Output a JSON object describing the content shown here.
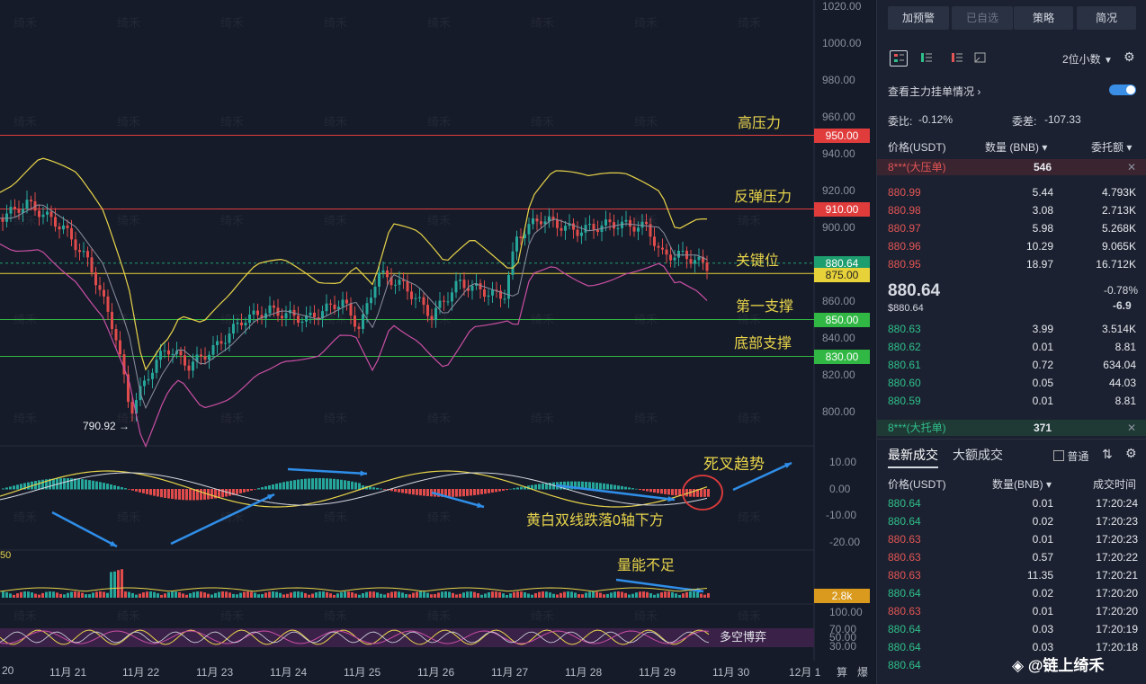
{
  "chart": {
    "y_axis_labels": [
      "1020.00",
      "1000.00",
      "980.00",
      "960.00",
      "940.00",
      "920.00",
      "900.00",
      "880.00",
      "860.00",
      "840.00",
      "820.00",
      "800.00"
    ],
    "macd_axis_labels": [
      "10.00",
      "0.00",
      "-10.00",
      "-20.00"
    ],
    "rsi_axis_labels": [
      "100.00",
      "70.00",
      "50.00",
      "30.00"
    ],
    "x_axis_labels": [
      "20",
      "11月 21",
      "11月 22",
      "11月 23",
      "11月 24",
      "11月 25",
      "11月 26",
      "11月 27",
      "11月 28",
      "11月 29",
      "11月 30",
      "12月 1",
      "算",
      "爆"
    ],
    "levels": [
      {
        "name": "高压力",
        "price": "950.00",
        "color": "#e03c3c"
      },
      {
        "name": "反弹压力",
        "price": "910.00",
        "color": "#e03c3c"
      },
      {
        "name": "关键位",
        "price": "880.64",
        "color": "#1d9e6f"
      },
      {
        "name": "",
        "price": "875.00",
        "color": "#e8d23a"
      },
      {
        "name": "第一支撑",
        "price": "850.00",
        "color": "#31b844"
      },
      {
        "name": "底部支撑",
        "price": "830.00",
        "color": "#31b844"
      }
    ],
    "low_marker": "790.92 →",
    "annotations": {
      "death_cross": "死叉趋势",
      "below_zero": "黄白双线跌落0轴下方",
      "low_volume": "量能不足",
      "long_short": "多空博弈"
    },
    "volume_tag": "2.8k",
    "volume_left": "50",
    "watermark": "绮禾"
  },
  "chart_data": {
    "type": "candlestick",
    "x": [
      "11月 21",
      "11月 22",
      "11月 23",
      "11月 24",
      "11月 25",
      "11月 26",
      "11月 27",
      "11月 28",
      "11月 29"
    ],
    "levels_price": [
      950,
      910,
      880.64,
      875,
      850,
      830
    ],
    "ylim": [
      790,
      1020
    ],
    "low": 790.92
  },
  "panel": {
    "buttons": [
      "加预警",
      "已自选",
      "策略",
      "简况"
    ],
    "decimal_select": "2位小数",
    "main_orders_label": "查看主力挂单情况",
    "weibi_label": "委比:",
    "weibi_value": "-0.12%",
    "weicha_label": "委差:",
    "weicha_value": "-107.33",
    "col_price": "价格(USDT)",
    "col_qty": "数量 (BNB)",
    "col_amount": "委托额",
    "big_ask": {
      "label": "8***(大压单)",
      "qty": "546"
    },
    "asks": [
      {
        "p": "880.99",
        "q": "5.44",
        "a": "4.793K"
      },
      {
        "p": "880.98",
        "q": "3.08",
        "a": "2.713K"
      },
      {
        "p": "880.97",
        "q": "5.98",
        "a": "5.268K"
      },
      {
        "p": "880.96",
        "q": "10.29",
        "a": "9.065K"
      },
      {
        "p": "880.95",
        "q": "18.97",
        "a": "16.712K"
      }
    ],
    "last_price": "880.64",
    "last_price_usd": "$880.64",
    "change_pct": "-0.78%",
    "change_abs": "-6.9",
    "bids": [
      {
        "p": "880.63",
        "q": "3.99",
        "a": "3.514K"
      },
      {
        "p": "880.62",
        "q": "0.01",
        "a": "8.81"
      },
      {
        "p": "880.61",
        "q": "0.72",
        "a": "634.04"
      },
      {
        "p": "880.60",
        "q": "0.05",
        "a": "44.03"
      },
      {
        "p": "880.59",
        "q": "0.01",
        "a": "8.81"
      }
    ],
    "big_bid": {
      "label": "8***(大托单)",
      "qty": "371"
    },
    "tab_latest": "最新成交",
    "tab_big": "大额成交",
    "normal_label": "普通",
    "trade_col_price": "价格(USDT)",
    "trade_col_qty": "数量(BNB)",
    "trade_col_time": "成交时间",
    "trades": [
      {
        "p": "880.64",
        "q": "0.01",
        "t": "17:20:24",
        "side": "buy"
      },
      {
        "p": "880.64",
        "q": "0.02",
        "t": "17:20:23",
        "side": "buy"
      },
      {
        "p": "880.63",
        "q": "0.01",
        "t": "17:20:23",
        "side": "sell"
      },
      {
        "p": "880.63",
        "q": "0.57",
        "t": "17:20:22",
        "side": "sell"
      },
      {
        "p": "880.63",
        "q": "11.35",
        "t": "17:20:21",
        "side": "sell"
      },
      {
        "p": "880.64",
        "q": "0.02",
        "t": "17:20:20",
        "side": "buy"
      },
      {
        "p": "880.63",
        "q": "0.01",
        "t": "17:20:20",
        "side": "sell"
      },
      {
        "p": "880.64",
        "q": "0.03",
        "t": "17:20:19",
        "side": "buy"
      },
      {
        "p": "880.64",
        "q": "0.03",
        "t": "17:20:18",
        "side": "buy"
      },
      {
        "p": "880.64",
        "q": "",
        "t": "",
        "side": "buy"
      }
    ],
    "footer_brand": "@链上绮禾"
  }
}
